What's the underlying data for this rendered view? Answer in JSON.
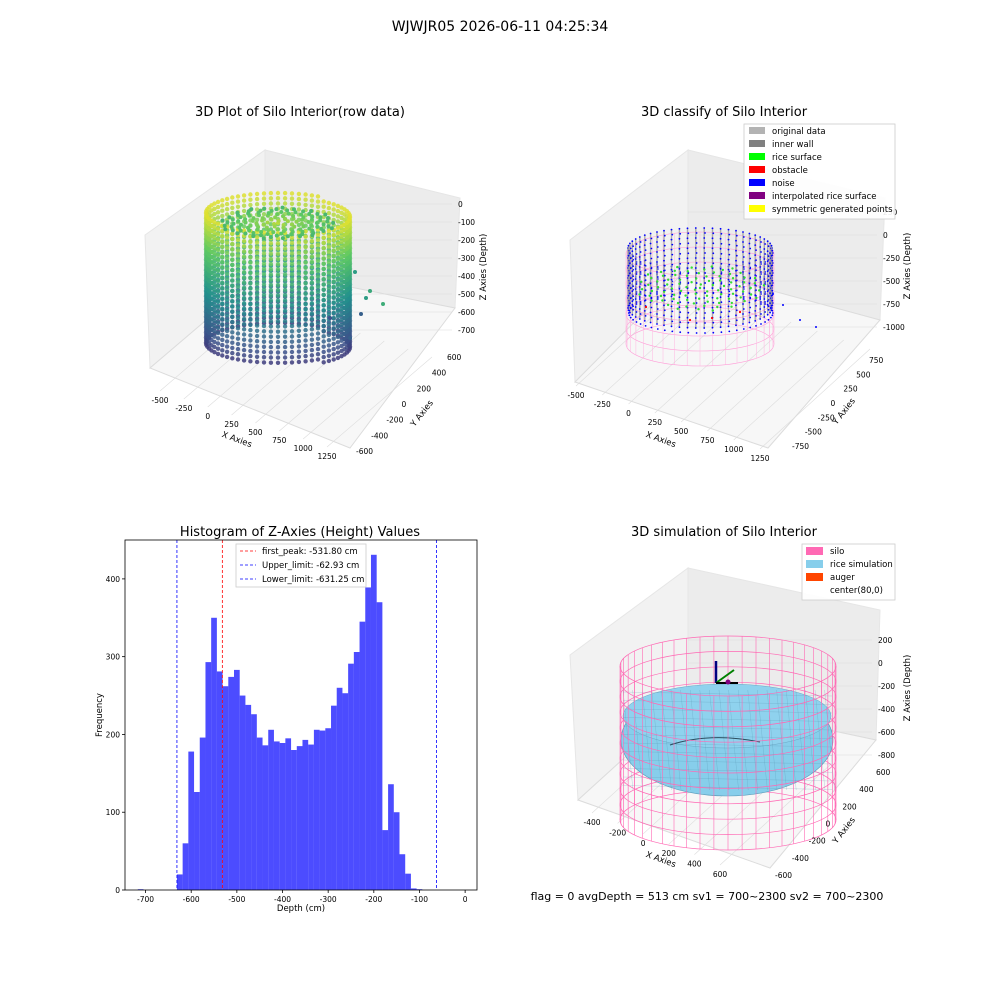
{
  "suptitle": "WJWJR05 2026-06-11 04:25:34",
  "footer": "flag = 0     avgDepth = 513 cm  sv1 = 700~2300  sv2 = 700~2300",
  "panels": {
    "raw": {
      "title": "3D Plot of Silo Interior(row data)",
      "xlabel": "X Axies",
      "ylabel": "Y Axies",
      "zlabel": "Z Axies (Depth)",
      "xticks": [
        "-500",
        "-250",
        "0",
        "250",
        "500",
        "750",
        "1000",
        "1250"
      ],
      "yticks": [
        "600",
        "400",
        "200",
        "0",
        "-200",
        "-400",
        "-600"
      ],
      "zticks": [
        "0",
        "-100",
        "-200",
        "-300",
        "-400",
        "-500",
        "-600",
        "-700"
      ],
      "colormap": "viridis"
    },
    "classify": {
      "title": "3D classify of Silo Interior",
      "xlabel": "X Axies",
      "ylabel": "Y Axies",
      "zlabel": "Z Axies (Depth)",
      "xticks": [
        "-500",
        "-250",
        "0",
        "250",
        "500",
        "750",
        "1000",
        "1250"
      ],
      "yticks": [
        "750",
        "500",
        "250",
        "0",
        "-250",
        "-500",
        "-750"
      ],
      "zticks": [
        "250",
        "0",
        "-250",
        "-500",
        "-750",
        "-1000"
      ],
      "legend": [
        {
          "label": "original data",
          "color": "#b3b3b3"
        },
        {
          "label": "inner wall",
          "color": "#808080"
        },
        {
          "label": "rice surface",
          "color": "#00ff00"
        },
        {
          "label": "obstacle",
          "color": "#ff0000"
        },
        {
          "label": "noise",
          "color": "#0000ff"
        },
        {
          "label": "interpolated rice surface",
          "color": "#800080"
        },
        {
          "label": "symmetric generated points",
          "color": "#ffff00"
        }
      ]
    },
    "simulation": {
      "title": "3D simulation of Silo Interior",
      "xlabel": "X Axies",
      "ylabel": "Y Axies",
      "zlabel": "Z Axies (Depth)",
      "xticks": [
        "-400",
        "-200",
        "0",
        "200",
        "400",
        "600"
      ],
      "yticks": [
        "600",
        "400",
        "200",
        "0",
        "-200",
        "-400",
        "-600"
      ],
      "zticks": [
        "200",
        "0",
        "-200",
        "-400",
        "-600",
        "-800"
      ],
      "legend": [
        {
          "label": "silo",
          "color": "#ff69b4"
        },
        {
          "label": "rice simulation",
          "color": "#87ceeb"
        },
        {
          "label": "auger",
          "color": "#ff4500"
        },
        {
          "label": "center(80,0)",
          "color": "#ffffff"
        }
      ]
    }
  },
  "chart_data": [
    {
      "type": "bar",
      "title": "Histogram of Z-Axies (Height) Values",
      "xlabel": "Depth (cm)",
      "ylabel": "Frequency",
      "xlim": [
        -745,
        26
      ],
      "ylim": [
        0,
        450
      ],
      "xticks": [
        -700,
        -600,
        -500,
        -400,
        -300,
        -200,
        -100,
        0
      ],
      "yticks": [
        0,
        100,
        200,
        300,
        400
      ],
      "bar_color": "#0000ff",
      "bin_width": 12.5,
      "bins_left": [
        -717,
        -631.25,
        -618.75,
        -606.25,
        -593.75,
        -581.25,
        -568.75,
        -556.25,
        -543.75,
        -531.25,
        -518.75,
        -506.25,
        -493.75,
        -481.25,
        -468.75,
        -456.25,
        -443.75,
        -431.25,
        -418.75,
        -406.25,
        -393.75,
        -381.25,
        -368.75,
        -356.25,
        -343.75,
        -331.25,
        -318.75,
        -306.25,
        -293.75,
        -281.25,
        -268.75,
        -256.25,
        -243.75,
        -231.25,
        -218.75,
        -206.25,
        -193.75,
        -181.25,
        -168.75,
        -156.25,
        -143.75,
        -131.25,
        -118.75,
        -106.25,
        -93.75,
        -81.25,
        -68.75,
        -56.25,
        -43.75,
        -31.25,
        -18.75
      ],
      "counts": [
        1,
        20,
        60,
        178,
        126,
        196,
        293,
        350,
        281,
        262,
        274,
        283,
        250,
        238,
        226,
        196,
        186,
        206,
        191,
        189,
        195,
        180,
        185,
        193,
        187,
        206,
        205,
        208,
        237,
        260,
        253,
        291,
        306,
        345,
        389,
        431,
        370,
        77,
        136,
        100,
        46,
        21,
        2,
        1,
        0,
        0,
        0,
        0,
        0,
        0,
        0
      ],
      "lines": [
        {
          "label": "first_peak: -531.80 cm",
          "x": -531.8,
          "color": "#ff0000"
        },
        {
          "label": "Upper_limit: -62.93 cm",
          "x": -62.93,
          "color": "#0000ff"
        },
        {
          "label": "Lower_limit: -631.25 cm",
          "x": -631.25,
          "color": "#0000ff"
        }
      ]
    }
  ]
}
